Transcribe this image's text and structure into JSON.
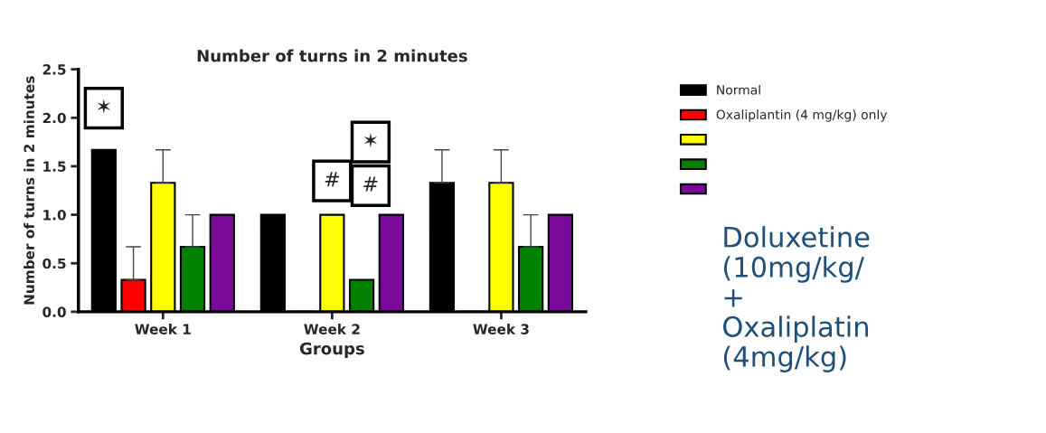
{
  "chart_data": {
    "type": "bar",
    "title": "Number of turns in 2 minutes",
    "xlabel": "Groups",
    "ylabel": "Number of turns in 2 minutes",
    "categories": [
      "Week 1",
      "Week 2",
      "Week 3"
    ],
    "series": [
      {
        "name": "Normal",
        "color": "#000000",
        "values": [
          1.67,
          1.0,
          1.33
        ],
        "errors": [
          null,
          null,
          [
            1.33,
            1.67
          ]
        ]
      },
      {
        "name": "Oxaliplantin (4 mg/kg) only",
        "color": "#ff0000",
        "values": [
          0.33,
          null,
          null
        ],
        "errors": [
          [
            0.33,
            0.67
          ],
          null,
          null
        ]
      },
      {
        "color": "#ffff00",
        "values": [
          1.33,
          1.0,
          1.33
        ],
        "errors": [
          [
            1.33,
            1.67
          ],
          null,
          [
            1.33,
            1.67
          ]
        ]
      },
      {
        "color": "#008000",
        "values": [
          0.67,
          0.33,
          0.67
        ],
        "errors": [
          [
            0.67,
            1.0
          ],
          null,
          [
            0.67,
            1.0
          ]
        ]
      },
      {
        "color": "#7a0a9a",
        "values": [
          1.0,
          1.0,
          1.0
        ],
        "errors": [
          null,
          null,
          null
        ]
      }
    ],
    "ylim": [
      0,
      2.5
    ],
    "yticks": [
      {
        "value": 0,
        "label": "0.0"
      },
      {
        "value": 0.5,
        "label": "0.5"
      },
      {
        "value": 1,
        "label": "1.0"
      },
      {
        "value": 1.5,
        "label": "1.5"
      },
      {
        "value": 2,
        "label": "2.0"
      },
      {
        "value": 2.5,
        "label": "2.5"
      }
    ],
    "annotations": [
      "✶",
      "#",
      "✶",
      "#",
      "Doluxetine\n(10mg/kg/\n+\nOxaliplatin\n(4mg/kg)"
    ],
    "grid": false,
    "legend": "right"
  }
}
